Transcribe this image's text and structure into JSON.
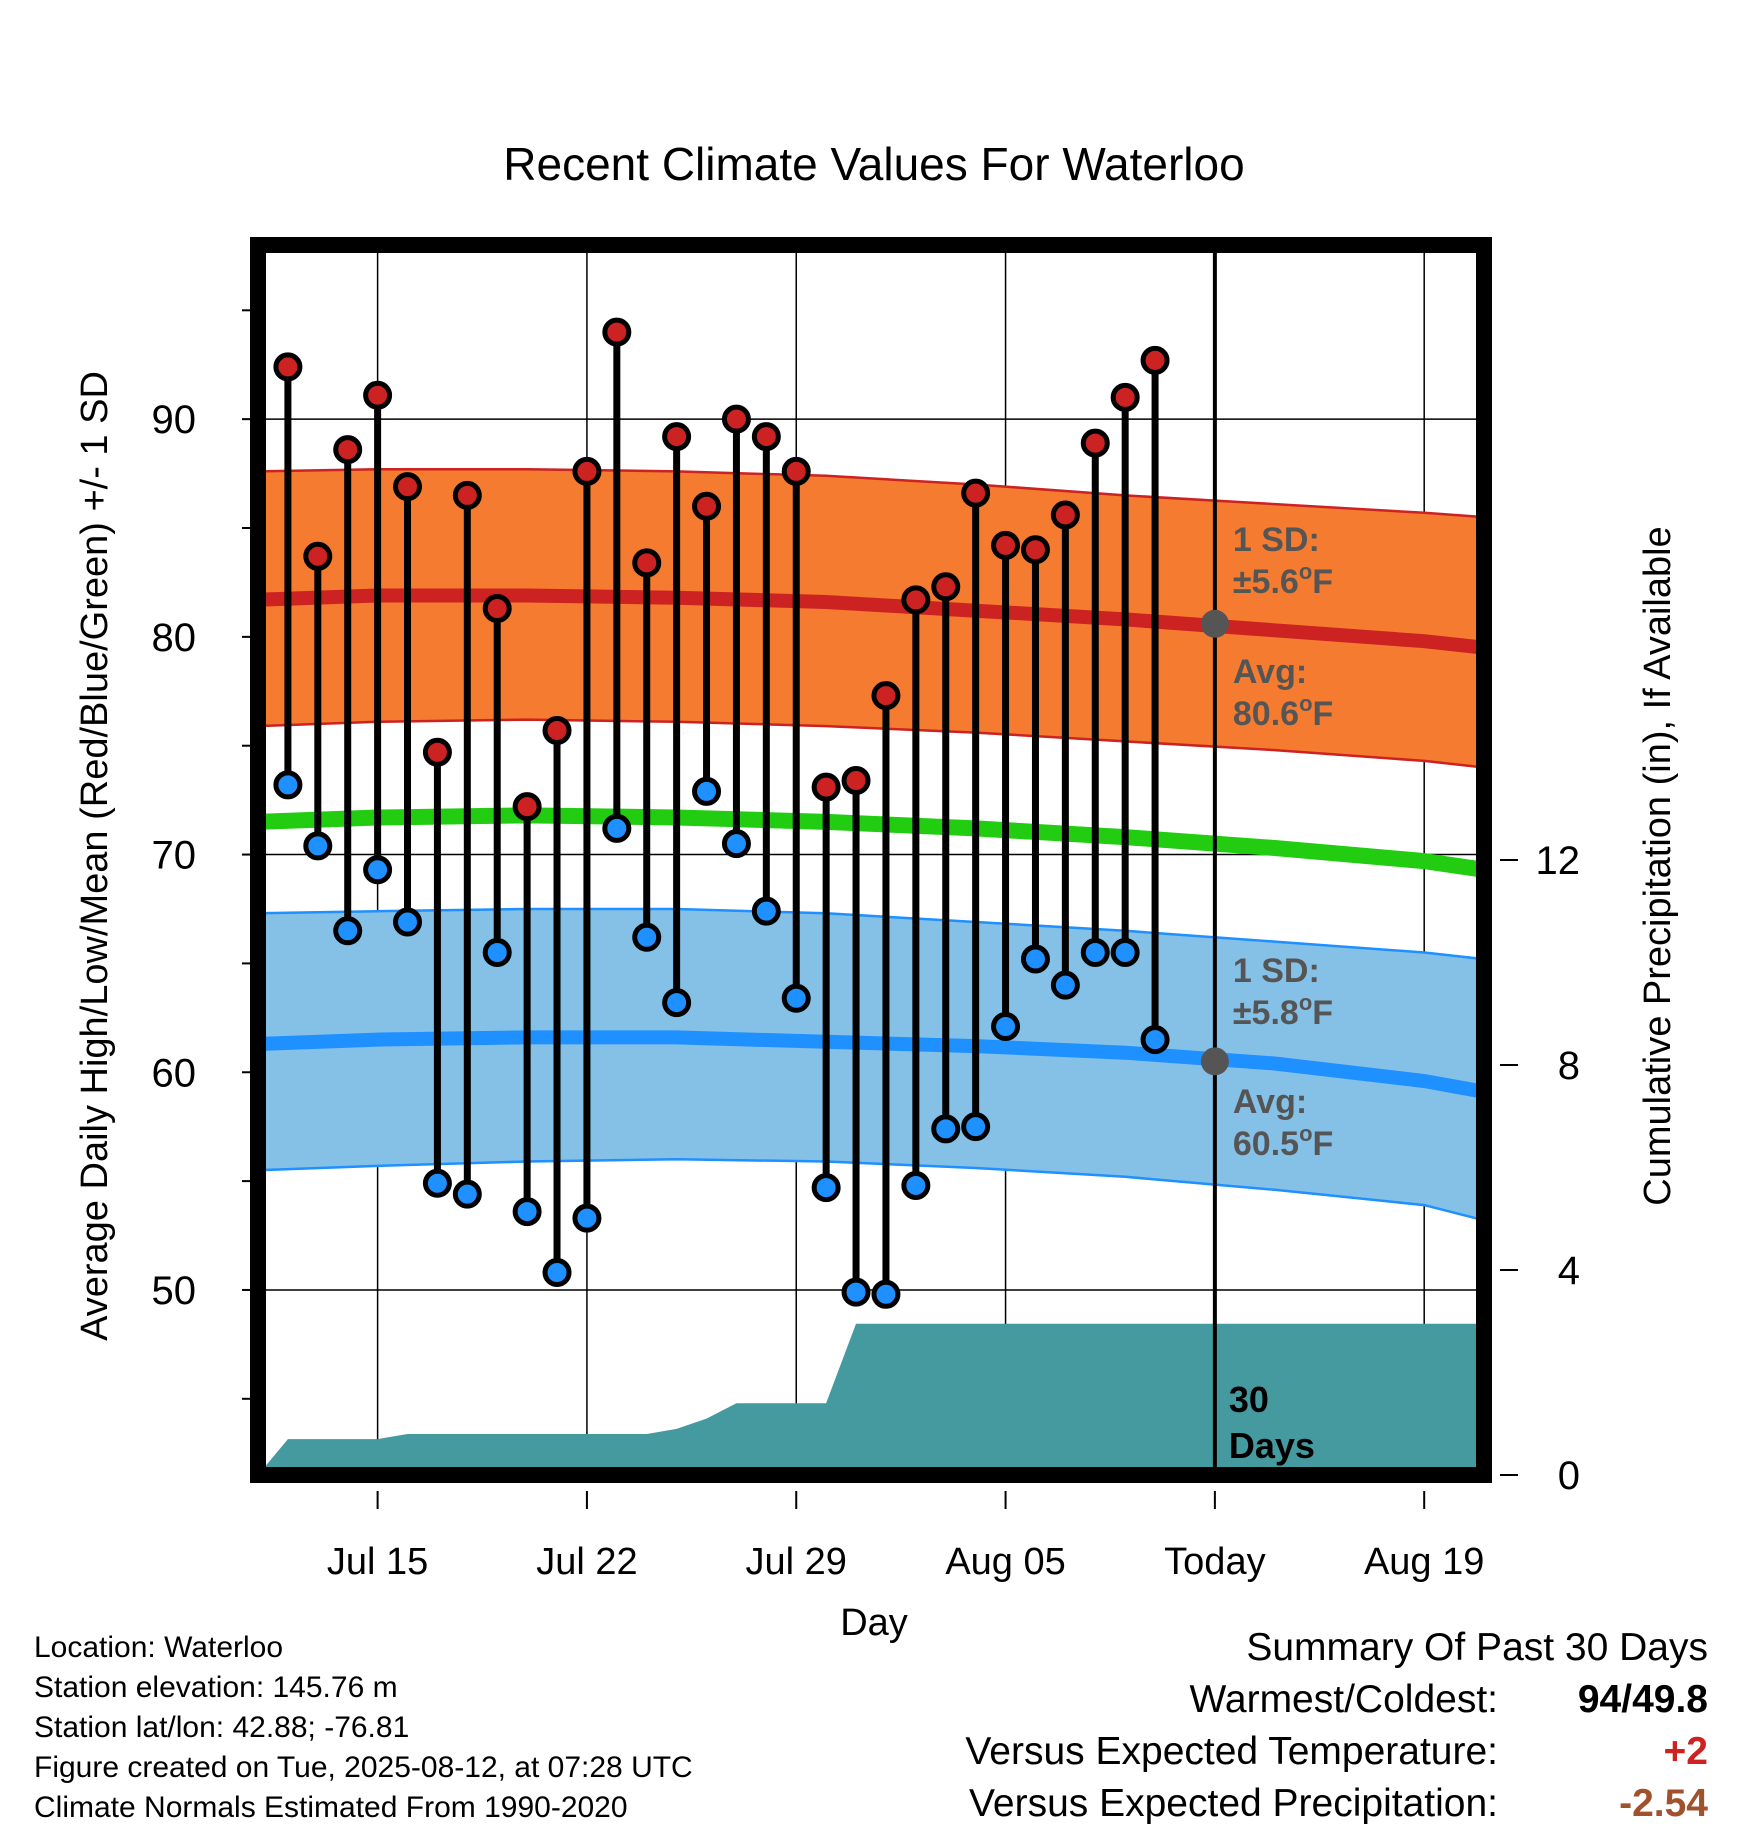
{
  "chart_data": {
    "type": "line",
    "title": "Recent Climate Values For Waterloo",
    "xlabel": "Day",
    "ylabel": "Average Daily High/Low/Mean (Red/Blue/Green) +/- 1 SD",
    "y2label": "Cumulative Precipitation (in), If Available",
    "x_tick_labels": [
      "Jul 15",
      "Jul 22",
      "Jul 29",
      "Aug 05",
      "Today",
      "Aug 19"
    ],
    "y_ticks": [
      50,
      60,
      70,
      80,
      90
    ],
    "y2_ticks": [
      0,
      4,
      8,
      12
    ],
    "ylim": [
      41.5,
      98
    ],
    "y2lim": [
      0,
      24
    ],
    "xlim": [
      "2025-07-11",
      "2025-08-21"
    ],
    "grid": true,
    "today": "2025-08-12",
    "today_label": "Today",
    "window_label": "30 Days",
    "observed": {
      "dates": [
        "2025-07-12",
        "2025-07-13",
        "2025-07-14",
        "2025-07-15",
        "2025-07-16",
        "2025-07-17",
        "2025-07-18",
        "2025-07-19",
        "2025-07-20",
        "2025-07-21",
        "2025-07-22",
        "2025-07-23",
        "2025-07-24",
        "2025-07-25",
        "2025-07-26",
        "2025-07-27",
        "2025-07-28",
        "2025-07-29",
        "2025-07-30",
        "2025-07-31",
        "2025-08-01",
        "2025-08-02",
        "2025-08-03",
        "2025-08-04",
        "2025-08-05",
        "2025-08-06",
        "2025-08-07",
        "2025-08-08",
        "2025-08-09",
        "2025-08-10",
        "2025-08-11"
      ],
      "high": [
        92.4,
        83.7,
        88.6,
        91.1,
        86.9,
        74.7,
        86.5,
        81.3,
        72.2,
        75.7,
        87.6,
        94.0,
        83.4,
        89.2,
        86.0,
        90.0,
        89.2,
        87.6,
        73.1,
        73.4,
        77.3,
        81.7,
        82.3,
        86.6,
        84.2,
        84.0,
        85.6,
        88.9,
        91.0,
        92.7,
        null
      ],
      "low": [
        73.2,
        70.4,
        66.5,
        69.3,
        66.9,
        54.9,
        54.4,
        65.5,
        53.6,
        50.8,
        53.3,
        71.2,
        66.2,
        63.2,
        72.9,
        70.5,
        67.4,
        63.4,
        54.7,
        49.9,
        49.8,
        54.8,
        57.4,
        57.5,
        62.1,
        65.2,
        64.0,
        65.5,
        65.5,
        61.5,
        null
      ]
    },
    "normals": {
      "dates": [
        "2025-07-11",
        "2025-07-15",
        "2025-07-20",
        "2025-07-25",
        "2025-07-30",
        "2025-08-04",
        "2025-08-09",
        "2025-08-14",
        "2025-08-19",
        "2025-08-21"
      ],
      "high_mean": [
        81.7,
        81.9,
        81.9,
        81.8,
        81.6,
        81.2,
        80.8,
        80.3,
        79.8,
        79.5
      ],
      "low_mean": [
        61.3,
        61.5,
        61.6,
        61.6,
        61.4,
        61.2,
        60.9,
        60.4,
        59.6,
        59.1
      ],
      "daily_mean": [
        71.5,
        71.7,
        71.8,
        71.7,
        71.5,
        71.2,
        70.8,
        70.3,
        69.7,
        69.3
      ],
      "high_sd_band": [
        [
          75.9,
          87.6
        ],
        [
          76.1,
          87.7
        ],
        [
          76.2,
          87.7
        ],
        [
          76.1,
          87.6
        ],
        [
          75.9,
          87.4
        ],
        [
          75.6,
          87.0
        ],
        [
          75.2,
          86.5
        ],
        [
          74.8,
          86.1
        ],
        [
          74.3,
          85.7
        ],
        [
          74.0,
          85.5
        ]
      ],
      "low_sd_band": [
        [
          55.5,
          67.3
        ],
        [
          55.7,
          67.4
        ],
        [
          55.9,
          67.5
        ],
        [
          56.0,
          67.5
        ],
        [
          55.9,
          67.3
        ],
        [
          55.6,
          66.9
        ],
        [
          55.2,
          66.5
        ],
        [
          54.6,
          66.0
        ],
        [
          53.9,
          65.5
        ],
        [
          53.2,
          65.2
        ]
      ]
    },
    "precip_cumulative": {
      "dates": [
        "2025-07-11",
        "2025-07-12",
        "2025-07-15",
        "2025-07-16",
        "2025-07-21",
        "2025-07-24",
        "2025-07-25",
        "2025-07-26",
        "2025-07-27",
        "2025-07-30",
        "2025-07-31",
        "2025-08-12",
        "2025-08-21"
      ],
      "values": [
        0,
        0.7,
        0.7,
        0.8,
        0.8,
        0.8,
        0.9,
        1.1,
        1.4,
        1.4,
        2.95,
        2.95,
        2.95
      ]
    },
    "annotations": {
      "high_sd_label": "1 SD:",
      "high_sd_value": "±5.6",
      "high_sd_unit": "F",
      "high_avg_label": "Avg:",
      "high_avg_value": "80.6",
      "high_avg_unit": "F",
      "low_sd_label": "1 SD:",
      "low_sd_value": "±5.8",
      "low_sd_unit": "F",
      "low_avg_label": "Avg:",
      "low_avg_value": "60.5",
      "low_avg_unit": "F",
      "degree": "o"
    },
    "colors": {
      "high_band": "#f47b30",
      "high_line": "#cc2222",
      "low_band": "#85c0e6",
      "low_line": "#1e90ff",
      "mean_line": "#22cc11",
      "precip": "#449a9f",
      "high_dot": "#cc2222",
      "low_dot": "#1e90ff",
      "annotation": "#555555"
    }
  },
  "info": {
    "location": "Location: Waterloo",
    "elevation": "Station elevation: 145.76 m",
    "latlon": "Station lat/lon: 42.88; -76.81",
    "created": "Figure created on Tue, 2025-08-12, at 07:28 UTC",
    "normals": "Climate Normals Estimated From 1990-2020"
  },
  "summary": {
    "title": "Summary Of Past 30 Days",
    "warm_cold_label": "Warmest/Coldest:",
    "warm_value": "94",
    "cold_value": "/49.8",
    "temp_label": "Versus Expected Temperature:",
    "temp_value": "+2",
    "temp_color": "#cc2222",
    "precip_label": "Versus Expected Precipitation:",
    "precip_value": "-2.54",
    "precip_color": "#a0522d"
  }
}
